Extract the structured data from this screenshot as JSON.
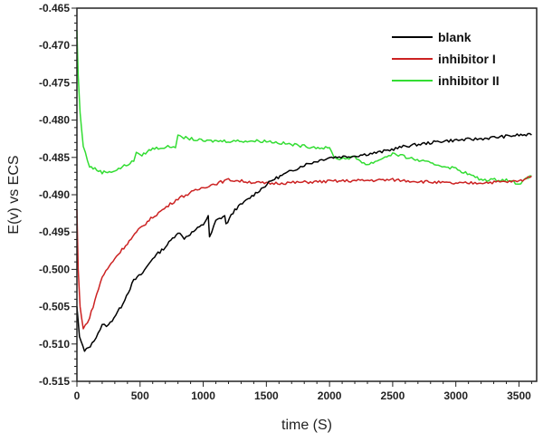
{
  "chart_data": {
    "type": "line",
    "title": "",
    "xlabel": "time (S)",
    "ylabel": "E(v) vs ECS",
    "xlim": [
      0,
      3640
    ],
    "ylim": [
      -0.515,
      -0.465
    ],
    "xticks": [
      0,
      500,
      1000,
      1500,
      2000,
      2500,
      3000,
      3500
    ],
    "yticks": [
      -0.465,
      -0.47,
      -0.475,
      -0.48,
      -0.485,
      -0.49,
      -0.495,
      -0.5,
      -0.505,
      -0.51,
      -0.515
    ],
    "ytick_labels": [
      "-0.465",
      "-0.470",
      "-0.475",
      "-0.480",
      "-0.485",
      "-0.490",
      "-0.495",
      "-0.500",
      "-0.505",
      "-0.510",
      "-0.515"
    ],
    "grid": false,
    "legend_position": "top-right",
    "series": [
      {
        "name": "blank",
        "color": "#000000",
        "x": [
          0,
          20,
          60,
          120,
          200,
          250,
          350,
          450,
          520,
          600,
          700,
          800,
          830,
          850,
          1000,
          1040,
          1050,
          1100,
          1170,
          1180,
          1250,
          1400,
          1550,
          1800,
          2000,
          2200,
          2400,
          2600,
          2900,
          3200,
          3500,
          3600
        ],
        "y": [
          -0.505,
          -0.509,
          -0.511,
          -0.51,
          -0.5075,
          -0.5075,
          -0.505,
          -0.5015,
          -0.5005,
          -0.4985,
          -0.497,
          -0.495,
          -0.4955,
          -0.4958,
          -0.494,
          -0.4928,
          -0.4958,
          -0.4935,
          -0.4928,
          -0.494,
          -0.492,
          -0.49,
          -0.488,
          -0.486,
          -0.485,
          -0.4848,
          -0.4843,
          -0.4835,
          -0.4828,
          -0.4825,
          -0.482,
          -0.482
        ]
      },
      {
        "name": "inhibitor I",
        "color": "#cc2222",
        "x": [
          0,
          10,
          25,
          50,
          100,
          200,
          300,
          400,
          500,
          600,
          800,
          1000,
          1200,
          1500,
          2000,
          2500,
          3000,
          3500,
          3600
        ],
        "y": [
          -0.492,
          -0.5,
          -0.505,
          -0.508,
          -0.5065,
          -0.501,
          -0.4985,
          -0.4965,
          -0.4945,
          -0.493,
          -0.4905,
          -0.489,
          -0.488,
          -0.4885,
          -0.4882,
          -0.488,
          -0.4885,
          -0.4882,
          -0.4875
        ]
      },
      {
        "name": "inhibitor II",
        "color": "#33dd33",
        "x": [
          0,
          10,
          25,
          50,
          100,
          200,
          300,
          450,
          470,
          500,
          600,
          780,
          800,
          1000,
          1500,
          1800,
          2000,
          2050,
          2200,
          2300,
          2500,
          2800,
          3000,
          3200,
          3400,
          3500,
          3600
        ],
        "y": [
          -0.468,
          -0.474,
          -0.479,
          -0.4835,
          -0.4862,
          -0.487,
          -0.4868,
          -0.4855,
          -0.4842,
          -0.4848,
          -0.4838,
          -0.4835,
          -0.4822,
          -0.4828,
          -0.4828,
          -0.4835,
          -0.4838,
          -0.4852,
          -0.485,
          -0.486,
          -0.4845,
          -0.4858,
          -0.4865,
          -0.488,
          -0.488,
          -0.4885,
          -0.4875
        ]
      }
    ]
  }
}
